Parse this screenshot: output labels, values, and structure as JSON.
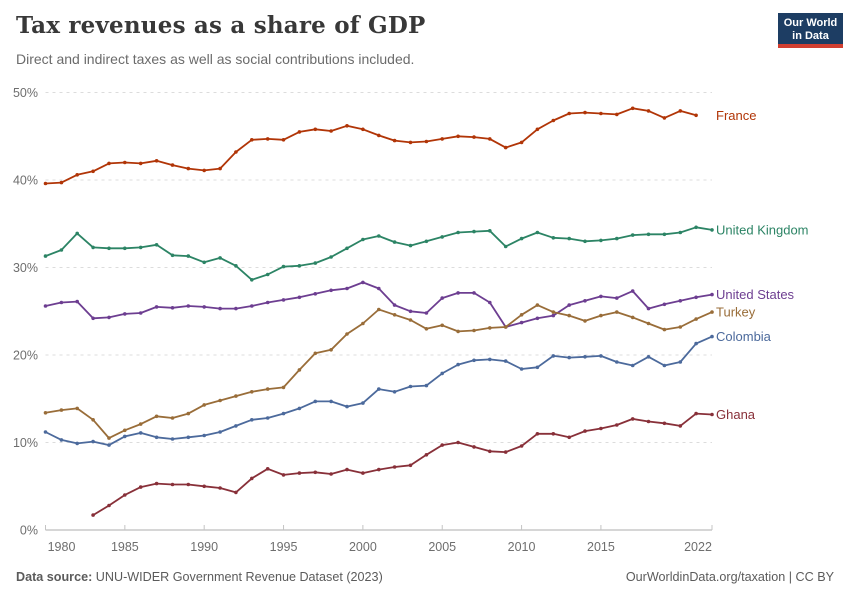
{
  "header": {
    "title": "Tax revenues as a share of GDP",
    "subtitle": "Direct and indirect taxes as well as social contributions included.",
    "logo": {
      "line1": "Our World",
      "line2": "in Data"
    }
  },
  "footer": {
    "source_label": "Data source:",
    "source_text": " UNU-WIDER Government Revenue Dataset (2023)",
    "right_text": "OurWorldinData.org/taxation | CC BY"
  },
  "colors": {
    "logo_background": "#1d3d63",
    "logo_stripe": "#d13f31",
    "gridline": "#dcdcdc",
    "axis": "#adadad",
    "tick_label": "#6e6e6e",
    "title_text": "#383838",
    "subtitle_text": "#6b6b6b",
    "footer_text": "#5b5b5b"
  },
  "chart_data": {
    "type": "line",
    "title": "Tax revenues as a share of GDP",
    "subtitle": "Direct and indirect taxes as well as social contributions included.",
    "xlabel": "",
    "ylabel": "",
    "xlim": [
      1980,
      2022
    ],
    "ylim": [
      0,
      50
    ],
    "grid": "horizontal-dashed",
    "legend_position": "right-of-line-ends",
    "y_ticks": [
      "0%",
      "10%",
      "20%",
      "30%",
      "40%",
      "50%"
    ],
    "x_ticks": [
      1980,
      1985,
      1990,
      1995,
      2000,
      2005,
      2010,
      2015,
      2022
    ],
    "x": [
      1980,
      1981,
      1982,
      1983,
      1984,
      1985,
      1986,
      1987,
      1988,
      1989,
      1990,
      1991,
      1992,
      1993,
      1994,
      1995,
      1996,
      1997,
      1998,
      1999,
      2000,
      2001,
      2002,
      2003,
      2004,
      2005,
      2006,
      2007,
      2008,
      2009,
      2010,
      2011,
      2012,
      2013,
      2014,
      2015,
      2016,
      2017,
      2018,
      2019,
      2020,
      2021,
      2022
    ],
    "unit": "% of GDP",
    "series": [
      {
        "name": "France",
        "color": "#B13507",
        "values": [
          39.6,
          39.7,
          40.6,
          41.0,
          41.9,
          42.0,
          41.9,
          42.2,
          41.7,
          41.3,
          41.1,
          41.3,
          43.2,
          44.6,
          44.7,
          44.6,
          45.5,
          45.8,
          45.6,
          46.2,
          45.8,
          45.1,
          44.5,
          44.3,
          44.4,
          44.7,
          45.0,
          44.9,
          44.7,
          43.7,
          44.3,
          45.8,
          46.8,
          47.6,
          47.7,
          47.6,
          47.5,
          48.2,
          47.9,
          47.1,
          47.9,
          47.4,
          null
        ]
      },
      {
        "name": "United Kingdom",
        "color": "#2C8465",
        "values": [
          31.3,
          32.0,
          33.9,
          32.3,
          32.2,
          32.2,
          32.3,
          32.6,
          31.4,
          31.3,
          30.6,
          31.1,
          30.2,
          28.6,
          29.2,
          30.1,
          30.2,
          30.5,
          31.2,
          32.2,
          33.2,
          33.6,
          32.9,
          32.5,
          33.0,
          33.5,
          34.0,
          34.1,
          34.2,
          32.4,
          33.3,
          34.0,
          33.4,
          33.3,
          33.0,
          33.1,
          33.3,
          33.7,
          33.8,
          33.8,
          34.0,
          34.6,
          34.3
        ]
      },
      {
        "name": "United States",
        "color": "#6D3E91",
        "values": [
          25.6,
          26.0,
          26.1,
          24.2,
          24.3,
          24.7,
          24.8,
          25.5,
          25.4,
          25.6,
          25.5,
          25.3,
          25.3,
          25.6,
          26.0,
          26.3,
          26.6,
          27.0,
          27.4,
          27.6,
          28.3,
          27.6,
          25.7,
          25.0,
          24.8,
          26.5,
          27.1,
          27.1,
          26.0,
          23.2,
          23.7,
          24.2,
          24.5,
          25.7,
          26.2,
          26.7,
          26.5,
          27.3,
          25.3,
          25.8,
          26.2,
          26.6,
          26.9
        ]
      },
      {
        "name": "Turkey",
        "color": "#996D39",
        "values": [
          13.4,
          13.7,
          13.9,
          12.6,
          10.5,
          11.4,
          12.1,
          13.0,
          12.8,
          13.3,
          14.3,
          14.8,
          15.3,
          15.8,
          16.1,
          16.3,
          18.3,
          20.2,
          20.6,
          22.4,
          23.6,
          25.2,
          24.6,
          24.0,
          23.0,
          23.4,
          22.7,
          22.8,
          23.1,
          23.2,
          24.6,
          25.7,
          24.9,
          24.5,
          23.9,
          24.5,
          24.9,
          24.3,
          23.6,
          22.9,
          23.2,
          24.1,
          24.9
        ]
      },
      {
        "name": "Colombia",
        "color": "#4C6A9C",
        "values": [
          11.2,
          10.3,
          9.9,
          10.1,
          9.7,
          10.7,
          11.1,
          10.6,
          10.4,
          10.6,
          10.8,
          11.2,
          11.9,
          12.6,
          12.8,
          13.3,
          13.9,
          14.7,
          14.7,
          14.1,
          14.5,
          16.1,
          15.8,
          16.4,
          16.5,
          17.9,
          18.9,
          19.4,
          19.5,
          19.3,
          18.4,
          18.6,
          19.9,
          19.7,
          19.8,
          19.9,
          19.2,
          18.8,
          19.8,
          18.8,
          19.2,
          21.3,
          22.1
        ]
      },
      {
        "name": "Ghana",
        "color": "#883039",
        "values": [
          null,
          null,
          null,
          1.7,
          2.8,
          4.0,
          4.9,
          5.3,
          5.2,
          5.2,
          5.0,
          4.8,
          4.3,
          5.9,
          7.0,
          6.3,
          6.5,
          6.6,
          6.4,
          6.9,
          6.5,
          6.9,
          7.2,
          7.4,
          8.6,
          9.7,
          10.0,
          9.5,
          9.0,
          8.9,
          9.6,
          11.0,
          11.0,
          10.6,
          11.3,
          11.6,
          12.0,
          12.7,
          12.4,
          12.2,
          11.9,
          13.3,
          13.2
        ]
      }
    ]
  }
}
